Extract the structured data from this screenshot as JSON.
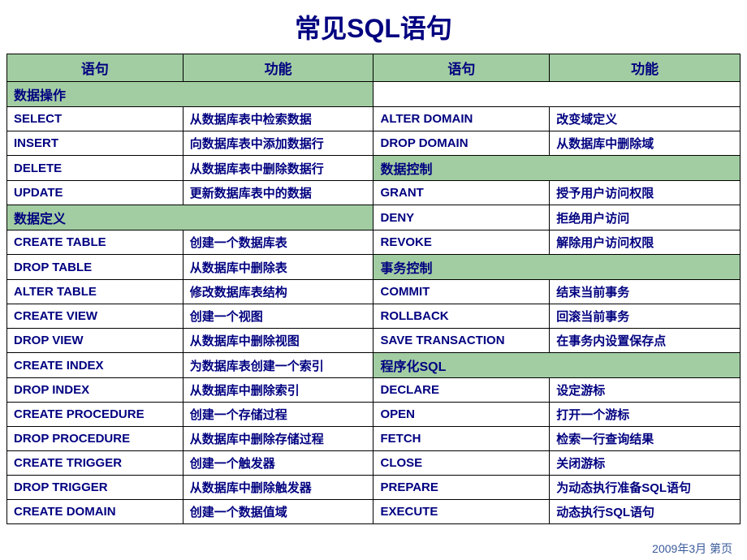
{
  "title": "常见SQL语句",
  "colors": {
    "header_bg": "#a2cda2",
    "section_bg": "#a2cda2",
    "text_color": "#000080",
    "border_color": "#000000",
    "background": "#ffffff"
  },
  "typography": {
    "title_fontsize": 32,
    "header_fontsize": 17,
    "cell_fontsize": 15,
    "font_weight": "bold"
  },
  "headers": [
    "语句",
    "功能",
    "语句",
    "功能"
  ],
  "rows": [
    {
      "type": "section_left",
      "left": "数据操作",
      "right_blank": true
    },
    {
      "type": "data",
      "c1": "SELECT",
      "c2": "从数据库表中检索数据",
      "c3": "ALTER DOMAIN",
      "c4": "改变域定义"
    },
    {
      "type": "data",
      "c1": "INSERT",
      "c2": "向数据库表中添加数据行",
      "c3": "DROP DOMAIN",
      "c4": "从数据库中删除域"
    },
    {
      "type": "data_rsec",
      "c1": "DELETE",
      "c2": "从数据库表中删除数据行",
      "rsec": "数据控制"
    },
    {
      "type": "data",
      "c1": "UPDATE",
      "c2": "更新数据库表中的数据",
      "c3": "GRANT",
      "c4": "授予用户访问权限"
    },
    {
      "type": "lsec_data",
      "lsec": "数据定义",
      "c3": "DENY",
      "c4": "拒绝用户访问"
    },
    {
      "type": "data",
      "c1": "CREATE TABLE",
      "c2": "创建一个数据库表",
      "c3": "REVOKE",
      "c4": "解除用户访问权限"
    },
    {
      "type": "data_rsec",
      "c1": "DROP TABLE",
      "c2": "从数据库中删除表",
      "rsec": "事务控制"
    },
    {
      "type": "data",
      "c1": "ALTER TABLE",
      "c2": "修改数据库表结构",
      "c3": "COMMIT",
      "c4": "结束当前事务"
    },
    {
      "type": "data",
      "c1": "CREATE VIEW",
      "c2": "创建一个视图",
      "c3": "ROLLBACK",
      "c4": "回滚当前事务"
    },
    {
      "type": "data",
      "c1": "DROP VIEW",
      "c2": "从数据库中删除视图",
      "c3": "SAVE TRANSACTION",
      "c4": "在事务内设置保存点"
    },
    {
      "type": "data_rsec",
      "c1": "CREATE INDEX",
      "c2": "为数据库表创建一个索引",
      "rsec": "程序化SQL"
    },
    {
      "type": "data",
      "c1": "DROP INDEX",
      "c2": "从数据库中删除索引",
      "c3": "DECLARE",
      "c4": "设定游标"
    },
    {
      "type": "data",
      "c1": "CREATE PROCEDURE",
      "c2": "创建一个存储过程",
      "c3": "OPEN",
      "c4": "打开一个游标"
    },
    {
      "type": "data",
      "c1": "DROP PROCEDURE",
      "c2": "从数据库中删除存储过程",
      "c3": "FETCH",
      "c4": "检索一行查询结果"
    },
    {
      "type": "data",
      "c1": "CREATE TRIGGER",
      "c2": "创建一个触发器",
      "c3": "CLOSE",
      "c4": "关闭游标"
    },
    {
      "type": "data",
      "c1": "DROP TRIGGER",
      "c2": "从数据库中删除触发器",
      "c3": "PREPARE",
      "c4": "为动态执行准备SQL语句"
    },
    {
      "type": "data",
      "c1": "CREATE DOMAIN",
      "c2": "创建一个数据值域",
      "c3": "EXECUTE",
      "c4": "动态执行SQL语句"
    }
  ],
  "footer": "2009年3月 第页"
}
